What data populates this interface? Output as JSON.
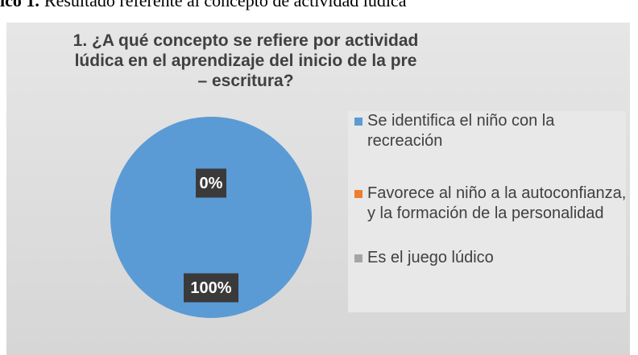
{
  "caption": {
    "label": "ico 1.",
    "text": "Resultado referente al concepto de actividad lúdica"
  },
  "chart_data": {
    "type": "pie",
    "title": "1. ¿A qué concepto se refiere por actividad lúdica en el aprendizaje del inicio de la pre – escritura?",
    "categories": [
      "Se identifica el niño con la recreación",
      "Favorece al niño a la autoconfianza, y la formación de la personalidad",
      "Es el juego lúdico"
    ],
    "values": [
      100,
      0,
      0
    ],
    "value_labels": [
      "100%",
      "0%",
      "0%"
    ],
    "colors": [
      "#5b9bd5",
      "#ed7d31",
      "#a5a5a5"
    ],
    "legend": "right"
  }
}
